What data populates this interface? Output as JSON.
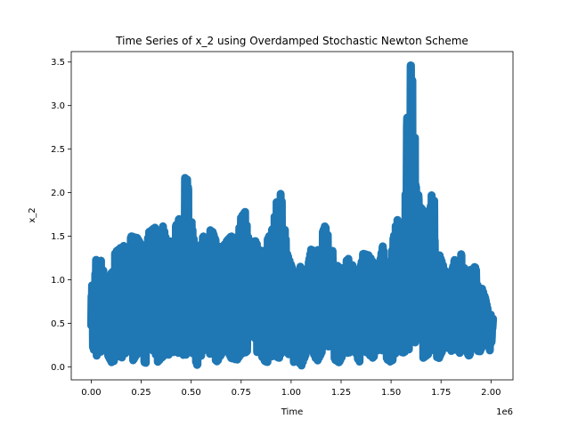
{
  "chart_data": {
    "type": "line",
    "title": "Time Series of x_2 using Overdamped Stochastic Newton Scheme",
    "xlabel": "Time",
    "ylabel": "x_2",
    "x_offset_label": "1e6",
    "x_scale": 1000000,
    "xlim": [
      -0.1,
      2.11
    ],
    "ylim": [
      -0.15,
      3.62
    ],
    "x_ticks": [
      0.0,
      0.25,
      0.5,
      0.75,
      1.0,
      1.25,
      1.5,
      1.75,
      2.0
    ],
    "x_tick_labels": [
      "0.00",
      "0.25",
      "0.50",
      "0.75",
      "1.00",
      "1.25",
      "1.50",
      "1.75",
      "2.00"
    ],
    "y_ticks": [
      0.0,
      0.5,
      1.0,
      1.5,
      2.0,
      2.5,
      3.0,
      3.5
    ],
    "y_tick_labels": [
      "0.0",
      "0.5",
      "1.0",
      "1.5",
      "2.0",
      "2.5",
      "3.0",
      "3.5"
    ],
    "grid": false,
    "series": [
      {
        "color": "#1f77b4",
        "envelope_x": [
          0.0,
          0.02,
          0.03,
          0.05,
          0.07,
          0.09,
          0.11,
          0.12,
          0.14,
          0.16,
          0.18,
          0.2,
          0.23,
          0.25,
          0.27,
          0.29,
          0.32,
          0.33,
          0.36,
          0.38,
          0.4,
          0.42,
          0.45,
          0.47,
          0.48,
          0.51,
          0.53,
          0.56,
          0.58,
          0.6,
          0.63,
          0.65,
          0.68,
          0.7,
          0.73,
          0.75,
          0.77,
          0.79,
          0.82,
          0.84,
          0.86,
          0.88,
          0.91,
          0.94,
          0.96,
          0.98,
          1.01,
          1.03,
          1.05,
          1.08,
          1.1,
          1.13,
          1.15,
          1.17,
          1.2,
          1.22,
          1.24,
          1.27,
          1.29,
          1.31,
          1.34,
          1.36,
          1.39,
          1.41,
          1.44,
          1.46,
          1.49,
          1.51,
          1.53,
          1.56,
          1.59,
          1.6,
          1.61,
          1.62,
          1.64,
          1.66,
          1.69,
          1.71,
          1.72,
          1.74,
          1.77,
          1.8,
          1.82,
          1.84,
          1.87,
          1.89,
          1.92,
          1.94,
          1.97,
          1.99,
          2.01
        ],
        "envelope_max": [
          0.85,
          1.25,
          1.2,
          1.22,
          1.0,
          1.05,
          1.1,
          1.32,
          1.35,
          1.4,
          1.3,
          1.5,
          1.48,
          1.4,
          1.3,
          1.55,
          1.6,
          1.45,
          1.62,
          1.4,
          1.45,
          1.6,
          1.75,
          2.18,
          2.15,
          1.5,
          1.25,
          1.5,
          1.45,
          1.6,
          1.4,
          1.35,
          1.45,
          1.5,
          1.45,
          1.72,
          1.78,
          1.4,
          1.45,
          1.35,
          1.3,
          1.45,
          1.6,
          2.1,
          1.8,
          1.3,
          1.1,
          0.9,
          1.2,
          1.1,
          1.35,
          1.3,
          1.5,
          1.62,
          1.38,
          1.25,
          1.1,
          1.2,
          1.25,
          1.15,
          1.05,
          1.3,
          1.28,
          1.2,
          1.15,
          1.4,
          0.9,
          1.45,
          1.7,
          1.5,
          3.47,
          3.46,
          3.2,
          2.6,
          1.85,
          1.8,
          1.6,
          2.18,
          1.7,
          1.3,
          1.1,
          1.05,
          1.25,
          1.4,
          1.1,
          1.1,
          1.15,
          1.0,
          0.8,
          0.6,
          0.6
        ],
        "envelope_min": [
          0.28,
          0.15,
          0.12,
          0.18,
          0.2,
          0.1,
          0.02,
          0.15,
          0.12,
          0.1,
          0.2,
          0.04,
          0.15,
          0.22,
          0.02,
          0.2,
          0.18,
          0.05,
          0.12,
          0.1,
          0.2,
          0.14,
          0.18,
          0.1,
          0.2,
          0.15,
          0.02,
          0.18,
          0.22,
          0.12,
          0.06,
          0.14,
          0.2,
          0.1,
          0.08,
          0.15,
          0.16,
          0.2,
          0.12,
          0.22,
          0.08,
          0.05,
          0.14,
          0.1,
          0.2,
          0.18,
          0.04,
          0.12,
          0.0,
          0.18,
          0.22,
          0.06,
          0.15,
          0.25,
          0.22,
          0.08,
          0.05,
          0.18,
          0.15,
          0.28,
          0.04,
          0.2,
          0.14,
          0.1,
          0.22,
          0.18,
          0.05,
          0.08,
          0.2,
          0.16,
          0.2,
          0.3,
          0.35,
          0.28,
          0.25,
          0.1,
          0.15,
          0.22,
          0.12,
          0.1,
          0.25,
          0.18,
          0.2,
          0.15,
          0.22,
          0.12,
          0.28,
          0.15,
          0.3,
          0.18,
          0.22
        ]
      }
    ]
  }
}
